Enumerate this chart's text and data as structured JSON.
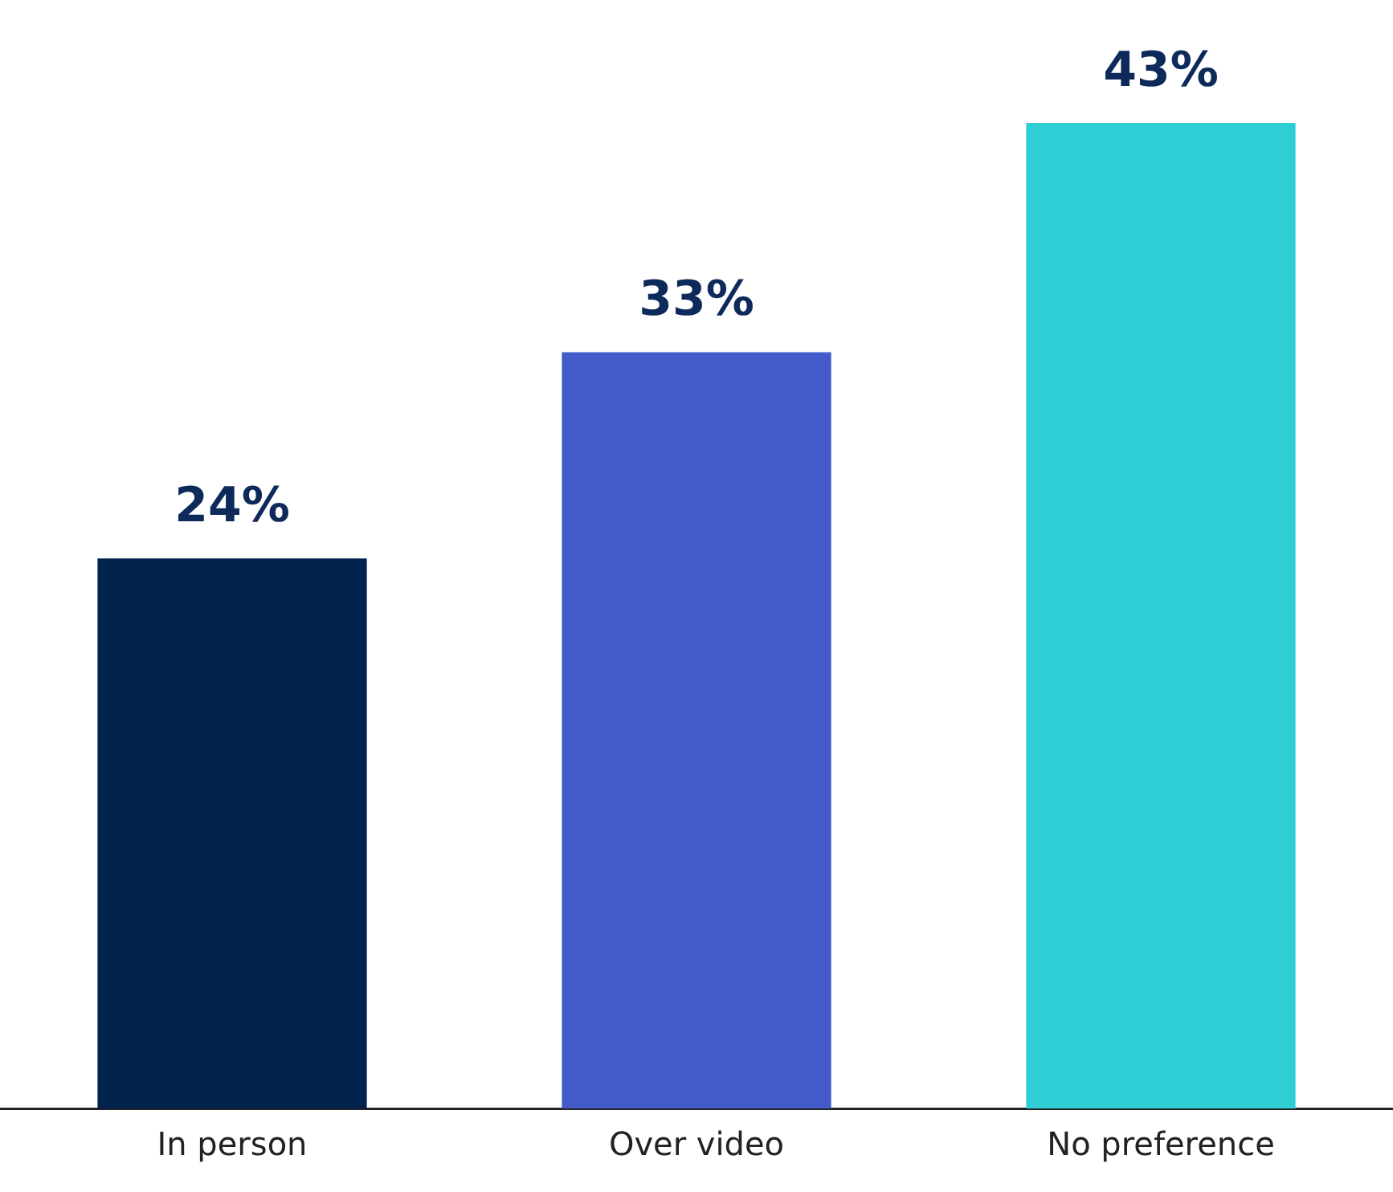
{
  "chart_data": {
    "type": "bar",
    "categories": [
      "In person",
      "Over video",
      "No preference"
    ],
    "values": [
      24,
      33,
      43
    ],
    "colors": [
      "#03234f",
      "#435bc8",
      "#2ecfd4"
    ],
    "value_labels": [
      "24%",
      "33%",
      "43%"
    ],
    "legend": false,
    "tick_labels": "x"
  }
}
